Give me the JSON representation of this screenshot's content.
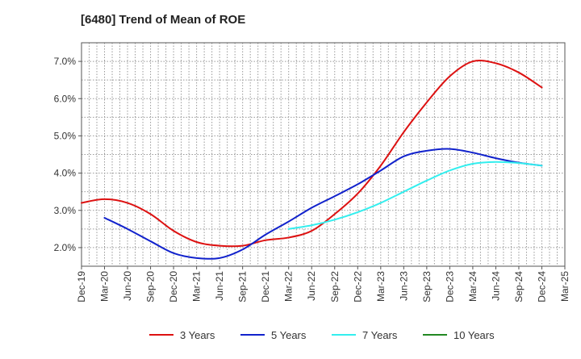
{
  "chart_data": {
    "type": "line",
    "title": "[6480]  Trend of Mean of ROE",
    "xlabel": "",
    "ylabel": "",
    "x": [
      "Dec-19",
      "Mar-20",
      "Jun-20",
      "Sep-20",
      "Dec-20",
      "Mar-21",
      "Jun-21",
      "Sep-21",
      "Dec-21",
      "Mar-22",
      "Jun-22",
      "Sep-22",
      "Dec-22",
      "Mar-23",
      "Jun-23",
      "Sep-23",
      "Dec-23",
      "Mar-24",
      "Jun-24",
      "Sep-24",
      "Dec-24",
      "Mar-25"
    ],
    "ylim": [
      1.5,
      7.5
    ],
    "yticks": [
      2.0,
      3.0,
      4.0,
      5.0,
      6.0,
      7.0
    ],
    "ytick_labels": [
      "2.0%",
      "3.0%",
      "4.0%",
      "5.0%",
      "6.0%",
      "7.0%"
    ],
    "grid": true,
    "legend_position": "bottom",
    "series": [
      {
        "name": "3 Years",
        "color": "#dd1111",
        "values": [
          3.2,
          3.3,
          3.2,
          2.9,
          2.45,
          2.15,
          2.05,
          2.05,
          2.2,
          2.27,
          2.45,
          2.9,
          3.45,
          4.2,
          5.1,
          5.9,
          6.6,
          7.0,
          6.95,
          6.7,
          6.3,
          null
        ]
      },
      {
        "name": "5 Years",
        "color": "#1122cc",
        "values": [
          null,
          2.8,
          2.5,
          2.17,
          1.85,
          1.72,
          1.72,
          1.95,
          2.35,
          2.7,
          3.07,
          3.38,
          3.7,
          4.07,
          4.45,
          4.6,
          4.65,
          4.55,
          4.4,
          4.28,
          4.2,
          null
        ]
      },
      {
        "name": "7 Years",
        "color": "#33eeee",
        "values": [
          null,
          null,
          null,
          null,
          null,
          null,
          null,
          null,
          null,
          2.5,
          2.6,
          2.75,
          2.95,
          3.2,
          3.5,
          3.8,
          4.07,
          4.25,
          4.3,
          4.27,
          4.2,
          null
        ]
      },
      {
        "name": "10 Years",
        "color": "#228822",
        "values": [
          null,
          null,
          null,
          null,
          null,
          null,
          null,
          null,
          null,
          null,
          null,
          null,
          null,
          null,
          null,
          null,
          null,
          null,
          null,
          null,
          null,
          null
        ]
      }
    ]
  }
}
